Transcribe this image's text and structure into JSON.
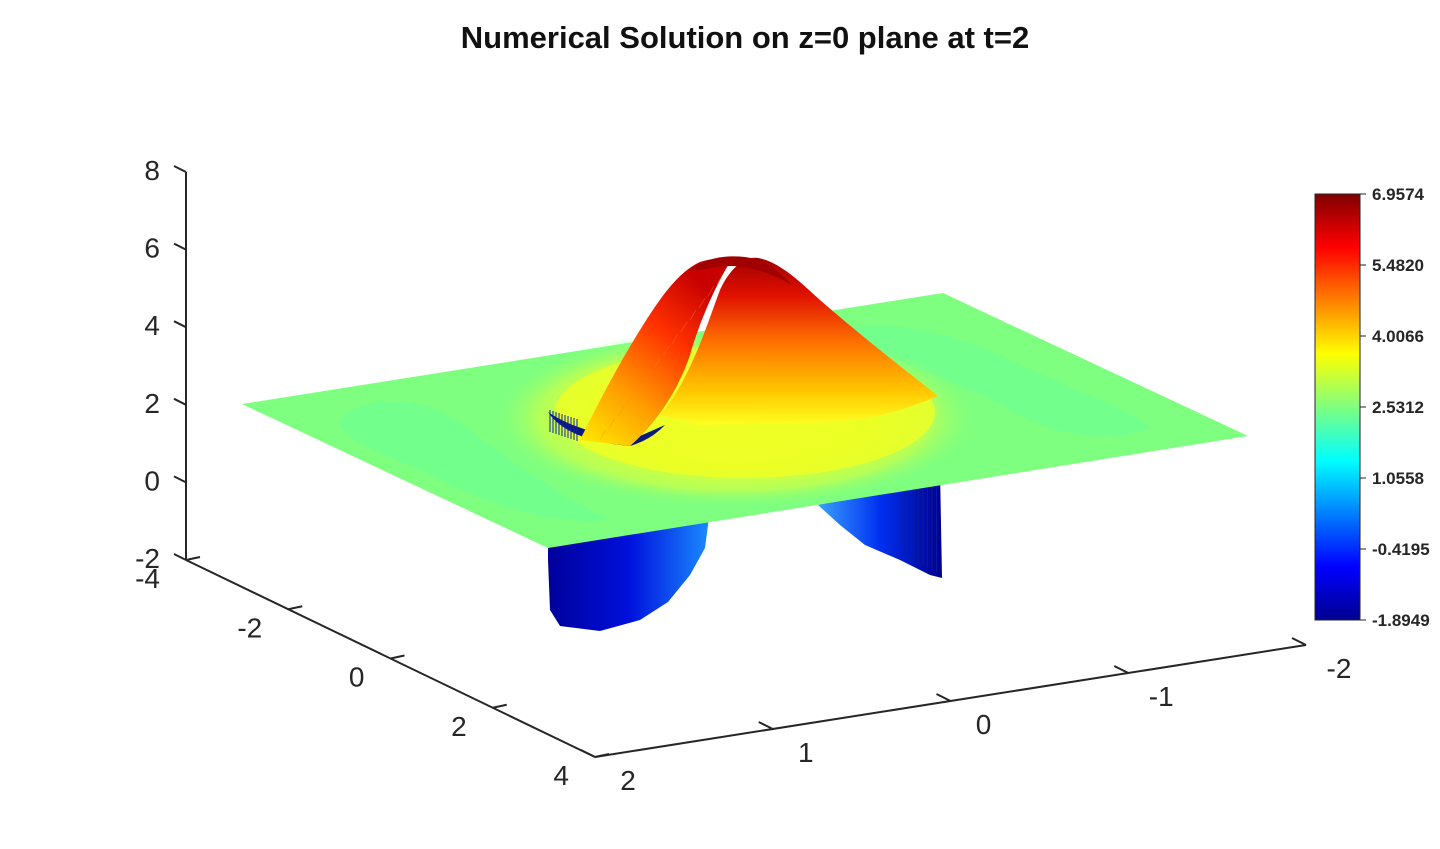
{
  "chart_data": {
    "type": "surface",
    "title": "Numerical Solution on z=0 plane at t=2",
    "xlabel": "",
    "ylabel": "",
    "zlabel": "",
    "x_axis": {
      "range": [
        -2,
        2
      ],
      "ticks": [
        -2,
        -1,
        0,
        1,
        2
      ],
      "tick_labels": [
        "-2",
        "-1",
        "0",
        "1",
        "2"
      ]
    },
    "y_axis": {
      "range": [
        -4,
        4
      ],
      "ticks": [
        -4,
        -2,
        0,
        2,
        4
      ],
      "tick_labels": [
        "-4",
        "-2",
        "0",
        "2",
        "4"
      ]
    },
    "z_axis": {
      "range": [
        -2,
        8
      ],
      "ticks": [
        -2,
        0,
        2,
        4,
        6,
        8
      ],
      "tick_labels": [
        "-2",
        "0",
        "2",
        "4",
        "6",
        "8"
      ]
    },
    "surface": {
      "baseline": 2.4,
      "peak": {
        "x": 0.3,
        "y": -0.6,
        "value": 6.9574
      },
      "trough": {
        "x": 0.3,
        "y": 0.6,
        "value": -1.8949
      },
      "side_lobes": [
        {
          "x": 0.3,
          "y": -2.6,
          "value": 2.0
        },
        {
          "x": 0.3,
          "y": 2.6,
          "value": 2.0
        }
      ]
    },
    "colorbar": {
      "colormap": "jet",
      "range": [
        -1.8949,
        6.9574
      ],
      "tick_labels": [
        "6.9574",
        "5.4820",
        "4.0066",
        "2.5312",
        "1.0558",
        "-0.4195",
        "-1.8949"
      ],
      "placement": "right"
    },
    "grid": false,
    "legend": "none"
  }
}
